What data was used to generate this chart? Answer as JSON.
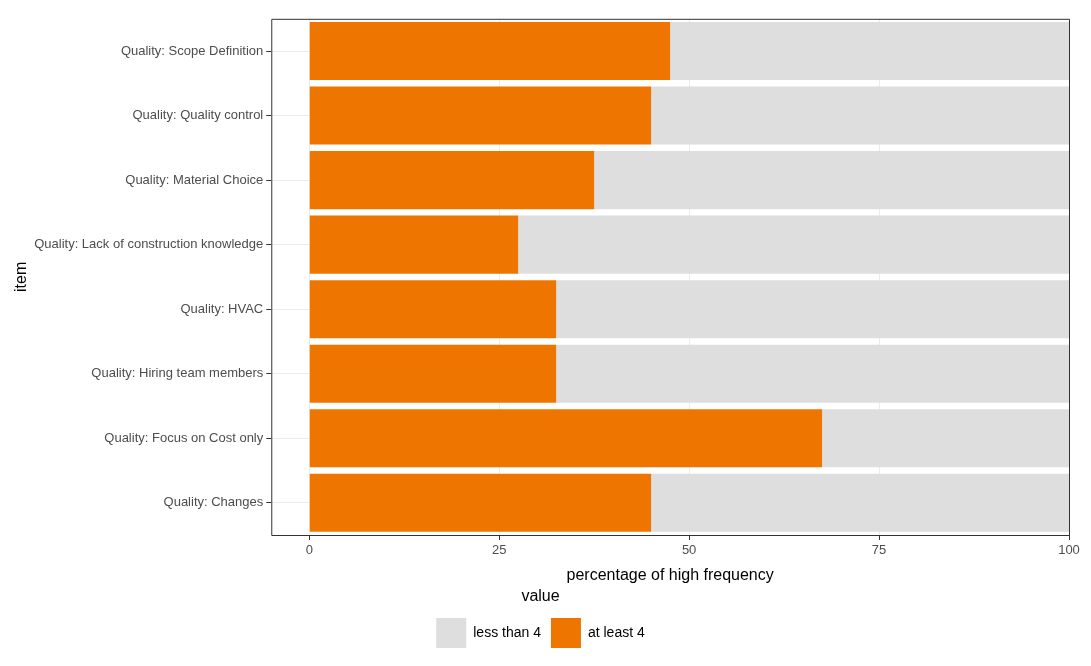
{
  "chart_data": {
    "type": "bar",
    "orientation": "horizontal",
    "stacked": true,
    "xlabel": "percentage of high frequency",
    "ylabel": "item",
    "legend_title": "value",
    "categories": [
      "Quality: Scope Definition",
      "Quality: Quality control",
      "Quality: Material Choice",
      "Quality: Lack of construction knowledge",
      "Quality: HVAC",
      "Quality: Hiring team members",
      "Quality: Focus on Cost only",
      "Quality: Changes"
    ],
    "series": [
      {
        "name": "at least 4",
        "color": "#ee7600",
        "values": [
          47.5,
          45,
          37.5,
          27.5,
          32.5,
          32.5,
          67.5,
          45
        ]
      },
      {
        "name": "less than 4",
        "color": "#dedede",
        "values": [
          52.5,
          55,
          62.5,
          72.5,
          67.5,
          67.5,
          32.5,
          55
        ]
      }
    ],
    "xlim": [
      -5,
      100
    ],
    "xticks": [
      0,
      25,
      50,
      75,
      100
    ],
    "grid": true,
    "legend": "bottom"
  }
}
